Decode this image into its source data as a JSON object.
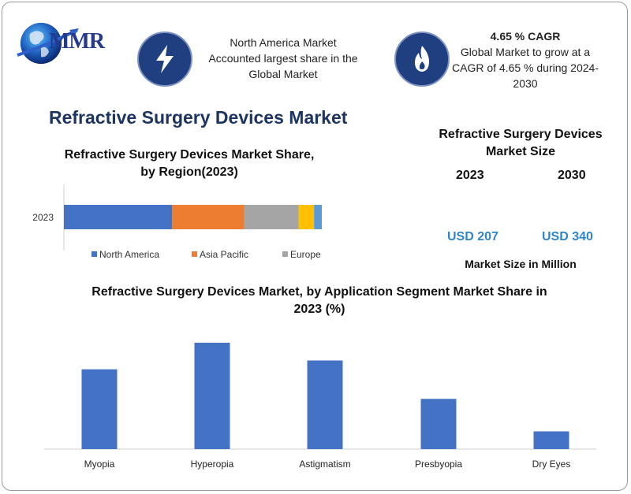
{
  "brand": {
    "logo_text": "MMR"
  },
  "info_left": {
    "icon": "lightning-bolt-icon",
    "text_lines": [
      "North America Market",
      "Accounted largest share in the",
      "Global Market"
    ]
  },
  "info_right": {
    "icon": "flame-icon",
    "headline": "4.65 % CAGR",
    "text_lines": [
      "Global Market to grow at a",
      "CAGR of 4.65 % during 2024-",
      "2030"
    ]
  },
  "main_title": "Refractive Surgery Devices Market",
  "market_size": {
    "title_lines": [
      "Refractive Surgery Devices",
      "Market Size"
    ],
    "years": [
      "2023",
      "2030"
    ],
    "values": [
      "USD 207",
      "USD 340"
    ],
    "footer": "Market Size in Million"
  },
  "colors": {
    "blue": "#4472c4",
    "orange": "#ed7d31",
    "gray": "#a5a5a5",
    "yellow": "#ffc000",
    "lightblue": "#5b9bd5",
    "title_navy": "#1c3561",
    "usd": "#2f86c9"
  },
  "chart_data": [
    {
      "type": "bar",
      "orientation": "horizontal",
      "stacked": true,
      "title": "Refractive Surgery Devices Market Share, by Region(2023)",
      "title_lines": [
        "Refractive Surgery Devices Market Share,",
        "by Region(2023)"
      ],
      "categories": [
        "2023"
      ],
      "xlim": [
        0,
        100
      ],
      "series": [
        {
          "name": "North America",
          "values": [
            42
          ],
          "color": "#4472c4"
        },
        {
          "name": "Asia Pacific",
          "values": [
            28
          ],
          "color": "#ed7d31"
        },
        {
          "name": "Europe",
          "values": [
            21
          ],
          "color": "#a5a5a5"
        },
        {
          "values": [
            6
          ],
          "color": "#ffc000"
        },
        {
          "values": [
            3
          ],
          "color": "#5b9bd5"
        }
      ],
      "legend": "bottom",
      "grid": false
    },
    {
      "type": "bar",
      "title": "Refractive Surgery Devices Market, by Application Segment Market Share in 2023 (%)",
      "title_lines": [
        "Refractive Surgery Devices Market, by  Application Segment Market Share in",
        "2023 (%)"
      ],
      "categories": [
        "Myopia",
        "Hyperopia",
        "Astigmatism",
        "Presbyopia",
        "Dry Eyes"
      ],
      "values": [
        27,
        36,
        30,
        17,
        6
      ],
      "ylim": [
        0,
        40
      ],
      "color": "#4472c4",
      "grid": false
    }
  ]
}
